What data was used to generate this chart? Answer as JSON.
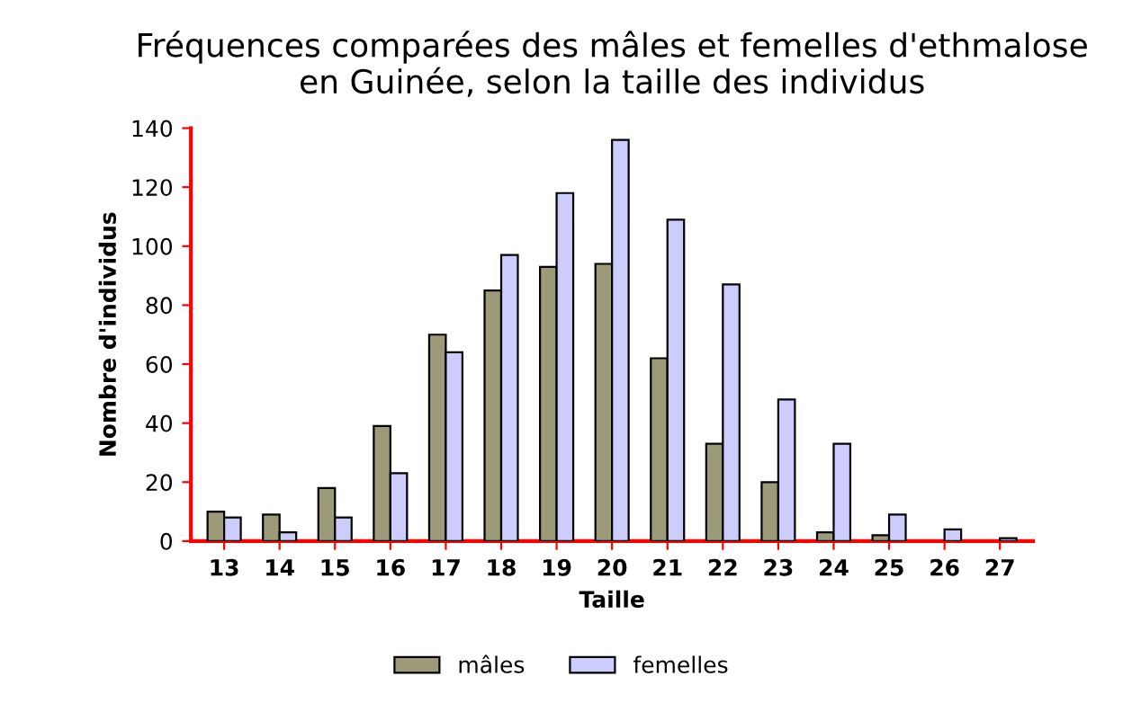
{
  "chart_data": {
    "type": "bar",
    "title": "Fréquences comparées des mâles et femelles d'ethmalose\nen Guinée, selon la taille des individus",
    "xlabel": "Taille",
    "ylabel": "Nombre d'individus",
    "categories": [
      "13",
      "14",
      "15",
      "16",
      "17",
      "18",
      "19",
      "20",
      "21",
      "22",
      "23",
      "24",
      "25",
      "26",
      "27"
    ],
    "series": [
      {
        "name": "mâles",
        "color": "#9c9a78",
        "values": [
          10,
          9,
          18,
          39,
          70,
          85,
          93,
          94,
          62,
          33,
          20,
          3,
          2,
          0,
          0
        ]
      },
      {
        "name": "femelles",
        "color": "#ccccff",
        "values": [
          8,
          3,
          8,
          23,
          64,
          97,
          118,
          136,
          109,
          87,
          48,
          33,
          9,
          4,
          1
        ]
      }
    ],
    "ylim": [
      0,
      140
    ],
    "yticks": [
      0,
      20,
      40,
      60,
      80,
      100,
      120,
      140
    ],
    "grid": false,
    "legend": "bottom"
  }
}
